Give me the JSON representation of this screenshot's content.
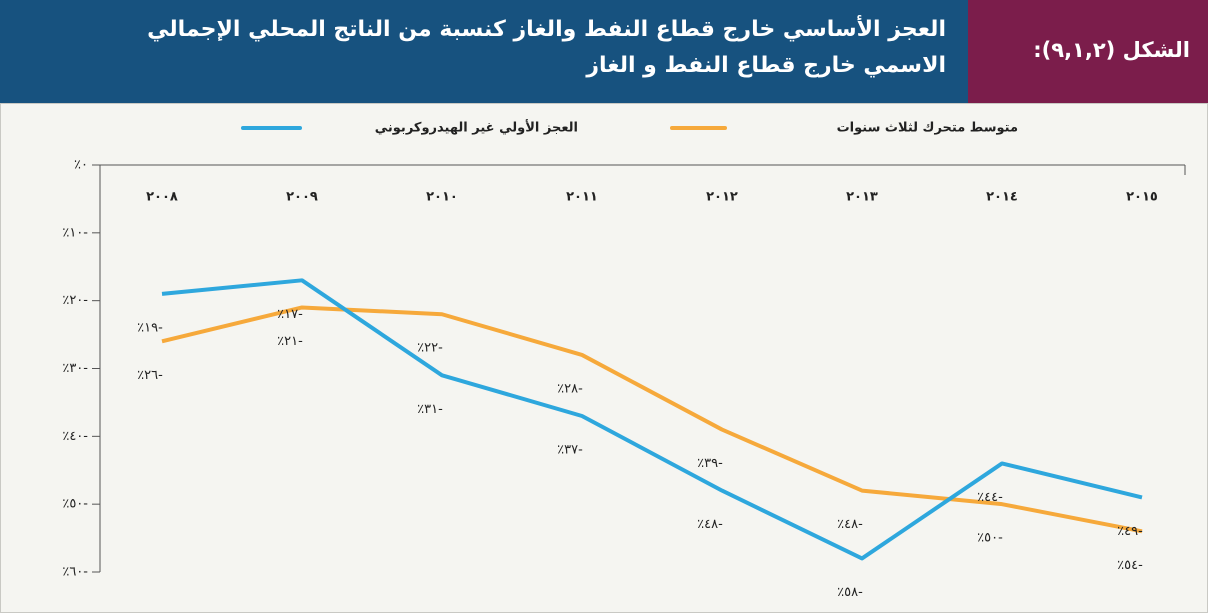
{
  "chart_data": {
    "type": "line",
    "figure_label": "الشكل (٩,١,٢):",
    "title_lines": [
      "العجز الأساسي خارج قطاع النفط والغاز كنسبة من الناتج المحلي الإجمالي",
      "الاسمي خارج قطاع النفط و الغاز"
    ],
    "categories": [
      "٢٠٠٨",
      "٢٠٠٩",
      "٢٠١٠",
      "٢٠١١",
      "٢٠١٢",
      "٢٠١٣",
      "٢٠١٤",
      "٢٠١٥"
    ],
    "series": [
      {
        "name": "متوسط متحرك لثلاث سنوات",
        "color": "#f6a93b",
        "values": [
          -26,
          -21,
          -22,
          -28,
          -39,
          -48,
          -50,
          -54
        ],
        "value_labels": [
          "٪٢٦-",
          "٪٢١-",
          "٪٢٢-",
          "٪٢٨-",
          "٪٣٩-",
          "٪٤٨-",
          "٪٥٠-",
          "٪٥٤-"
        ]
      },
      {
        "name": "العجز الأولي غير الهيدروكربوني",
        "color": "#2ea7dd",
        "values": [
          -19,
          -17,
          -31,
          -37,
          -48,
          -58,
          -44,
          -49
        ],
        "value_labels": [
          "٪١٩-",
          "٪١٧-",
          "٪٣١-",
          "٪٣٧-",
          "٪٤٨-",
          "٪٥٨-",
          "٪٤٤-",
          "٪٤٩-"
        ]
      }
    ],
    "ylim": [
      -60,
      0
    ],
    "yticks": [
      {
        "value": 0,
        "label": "٪٠"
      },
      {
        "value": -10,
        "label": "٪١٠-"
      },
      {
        "value": -20,
        "label": "٪٢٠-"
      },
      {
        "value": -30,
        "label": "٪٣٠-"
      },
      {
        "value": -40,
        "label": "٪٤٠-"
      },
      {
        "value": -50,
        "label": "٪٥٠-"
      },
      {
        "value": -60,
        "label": "٪٦٠-"
      }
    ]
  }
}
